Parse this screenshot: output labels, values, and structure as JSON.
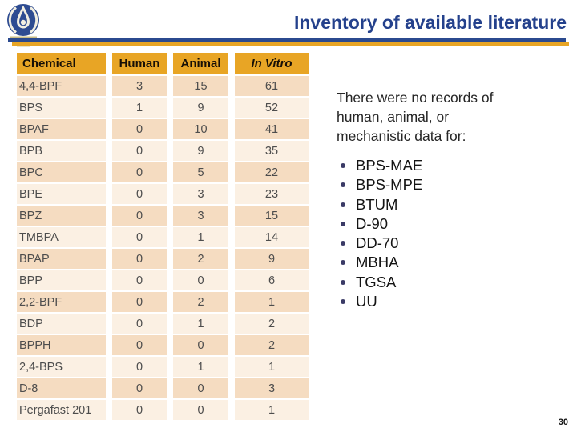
{
  "header": {
    "title": "Inventory of available literature"
  },
  "table": {
    "columns": [
      {
        "label": "Chemical",
        "italic": false
      },
      {
        "label": "Human",
        "italic": false
      },
      {
        "label": "Animal",
        "italic": false
      },
      {
        "label": "In Vitro",
        "italic": true
      }
    ],
    "rows": [
      {
        "chemical": "4,4-BPF",
        "human": "3",
        "animal": "15",
        "in_vitro": "61"
      },
      {
        "chemical": "BPS",
        "human": "1",
        "animal": "9",
        "in_vitro": "52"
      },
      {
        "chemical": "BPAF",
        "human": "0",
        "animal": "10",
        "in_vitro": "41"
      },
      {
        "chemical": "BPB",
        "human": "0",
        "animal": "9",
        "in_vitro": "35"
      },
      {
        "chemical": "BPC",
        "human": "0",
        "animal": "5",
        "in_vitro": "22"
      },
      {
        "chemical": "BPE",
        "human": "0",
        "animal": "3",
        "in_vitro": "23"
      },
      {
        "chemical": "BPZ",
        "human": "0",
        "animal": "3",
        "in_vitro": "15"
      },
      {
        "chemical": "TMBPA",
        "human": "0",
        "animal": "1",
        "in_vitro": "14"
      },
      {
        "chemical": "BPAP",
        "human": "0",
        "animal": "2",
        "in_vitro": "9"
      },
      {
        "chemical": "BPP",
        "human": "0",
        "animal": "0",
        "in_vitro": "6"
      },
      {
        "chemical": "2,2-BPF",
        "human": "0",
        "animal": "2",
        "in_vitro": "1"
      },
      {
        "chemical": "BDP",
        "human": "0",
        "animal": "1",
        "in_vitro": "2"
      },
      {
        "chemical": "BPPH",
        "human": "0",
        "animal": "0",
        "in_vitro": "2"
      },
      {
        "chemical": "2,4-BPS",
        "human": "0",
        "animal": "1",
        "in_vitro": "1"
      },
      {
        "chemical": "D-8",
        "human": "0",
        "animal": "0",
        "in_vitro": "3"
      },
      {
        "chemical": "Pergafast 201",
        "human": "0",
        "animal": "0",
        "in_vitro": "1"
      }
    ]
  },
  "side_panel": {
    "intro_lines": [
      "There were no records of",
      "human, animal, or",
      "mechanistic data for:"
    ],
    "bullets": [
      "BPS-MAE",
      "BPS-MPE",
      "BTUM",
      "D-90",
      "DD-70",
      "MBHA",
      "TGSA",
      "UU"
    ]
  },
  "footer": {
    "page_number": "30"
  },
  "colors": {
    "navy": "#24418C",
    "navy_bar": "#2B4A8F",
    "gold": "#E8A525",
    "row_dark": "#F5DCC1",
    "row_light": "#FBF0E3",
    "bullet_dot": "#3A3A66"
  }
}
